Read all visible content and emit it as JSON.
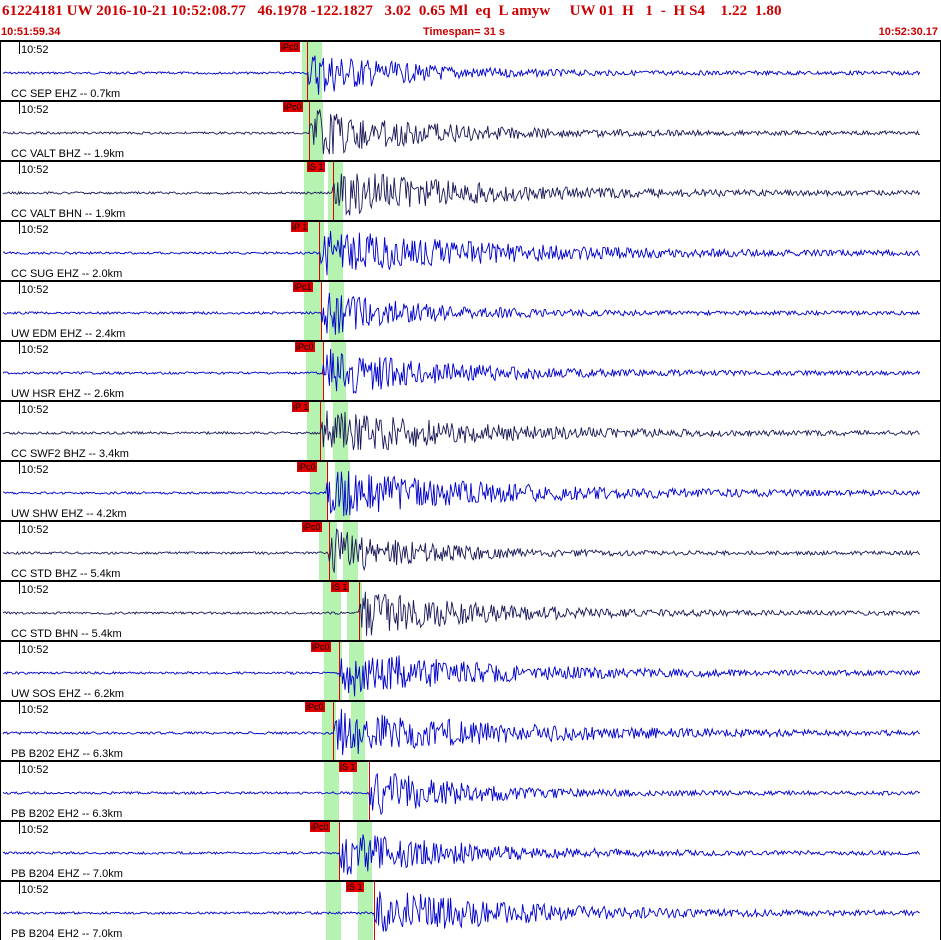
{
  "header": {
    "title": "61224181 UW 2016-10-21 10:52:08.77   46.1978 -122.1827   3.02  0.65 Ml  eq  L amyw     UW 01  H   1  -  H S4    1.22  1.80",
    "start_time": "10:51:59.34",
    "timespan": "Timespan=  31 s",
    "end_time": "10:52:30.17"
  },
  "colors": {
    "header_text": "#cc0000",
    "wave_blue": "#0000cc",
    "wave_navy": "#1a1a5a",
    "pick_red": "#e00000",
    "window_green": "#b6f3b0"
  },
  "tick_label": "10:52",
  "channels": [
    {
      "label": "CC SEP EHZ -- 0.7km",
      "pick": "iPc0",
      "color": "blue"
    },
    {
      "label": "CC VALT BHZ -- 1.9km",
      "pick": "iPc0",
      "color": "navy"
    },
    {
      "label": "CC VALT BHN -- 1.9km",
      "pick": "iS 1",
      "color": "navy"
    },
    {
      "label": "CC SUG EHZ -- 2.0km",
      "pick": "iP 1",
      "color": "blue"
    },
    {
      "label": "UW EDM EHZ -- 2.4km",
      "pick": "iPc1",
      "color": "blue"
    },
    {
      "label": "UW HSR EHZ -- 2.6km",
      "pick": "iPc0",
      "color": "blue"
    },
    {
      "label": "CC SWF2 BHZ -- 3.4km",
      "pick": "iP 1",
      "color": "navy"
    },
    {
      "label": "UW SHW EHZ -- 4.2km",
      "pick": "iPc0",
      "color": "blue"
    },
    {
      "label": "CC STD BHZ -- 5.4km",
      "pick": "iPc0",
      "color": "navy"
    },
    {
      "label": "CC STD BHN -- 5.4km",
      "pick": "iS 1",
      "color": "navy"
    },
    {
      "label": "UW SOS EHZ -- 6.2km",
      "pick": "iPc0",
      "color": "blue"
    },
    {
      "label": "PB B202 EHZ -- 6.3km",
      "pick": "iPc0",
      "color": "blue"
    },
    {
      "label": "PB B202 EH2 -- 6.3km",
      "pick": "iS 1",
      "color": "blue"
    },
    {
      "label": "PB B204 EHZ -- 7.0km",
      "pick": "iPc0",
      "color": "blue"
    },
    {
      "label": "PB B204 EH2 -- 7.0km",
      "pick": "iS 1",
      "color": "blue"
    }
  ]
}
